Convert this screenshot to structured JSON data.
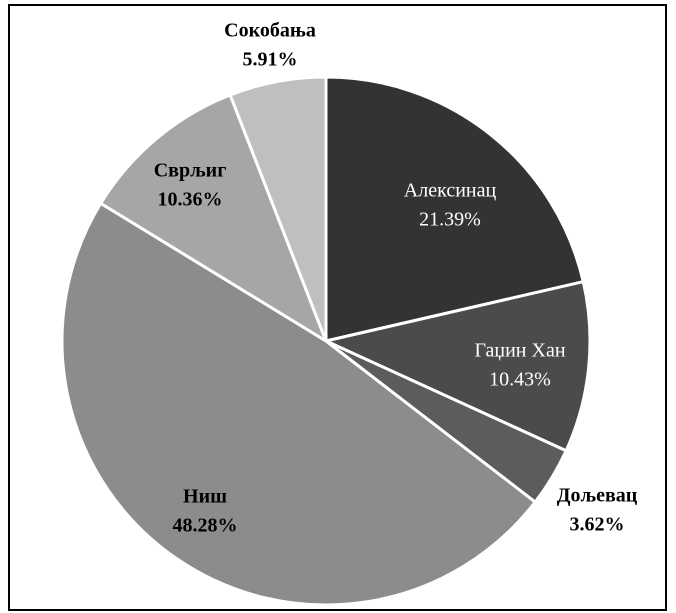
{
  "chart_data": {
    "type": "pie",
    "categories": [
      "Алексинац",
      "Гаџин Хан",
      "Дољевац",
      "Ниш",
      "Сврљиг",
      "Сокобања"
    ],
    "values": [
      21.39,
      10.43,
      3.62,
      48.28,
      10.36,
      5.91
    ],
    "value_labels": [
      "21.39%",
      "10.43%",
      "3.62%",
      "48.28%",
      "10.36%",
      "5.91%"
    ],
    "colors": [
      "#333333",
      "#4b4b4b",
      "#5c5c5c",
      "#8c8c8c",
      "#a6a6a6",
      "#bfbfbf"
    ]
  }
}
